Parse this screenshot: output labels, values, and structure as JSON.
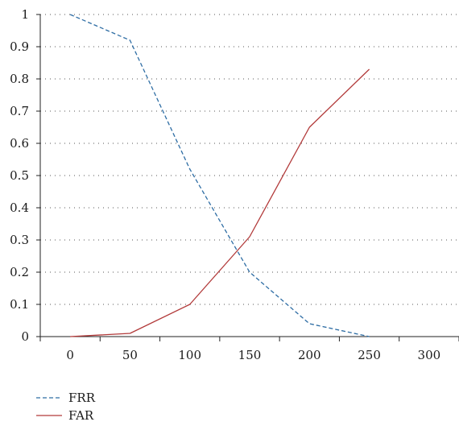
{
  "chart_data": {
    "type": "line",
    "x": [
      0,
      50,
      100,
      150,
      200,
      250
    ],
    "series": [
      {
        "name": "FRR",
        "values": [
          1.0,
          0.92,
          0.52,
          0.2,
          0.04,
          0.0
        ],
        "color": "#2e6da4",
        "dash": "dashed"
      },
      {
        "name": "FAR",
        "values": [
          0.0,
          0.01,
          0.1,
          0.31,
          0.65,
          0.83
        ],
        "color": "#b23a3a",
        "dash": "solid"
      }
    ],
    "xticks": [
      0,
      50,
      100,
      150,
      200,
      250,
      300
    ],
    "yticks": [
      0,
      0.1,
      0.2,
      0.3,
      0.4,
      0.5,
      0.6,
      0.7,
      0.8,
      0.9,
      1
    ],
    "xtick_labels": [
      "0",
      "50",
      "100",
      "150",
      "200",
      "250",
      "300"
    ],
    "ytick_labels": [
      "0",
      "0.1",
      "0.2",
      "0.3",
      "0.4",
      "0.5",
      "0.6",
      "0.7",
      "0.8",
      "0.9",
      "1"
    ],
    "xlim": [
      -25,
      325
    ],
    "ylim": [
      0,
      1
    ],
    "grid": "horizontal-dotted",
    "legend_position": "bottom-left",
    "title": "",
    "xlabel": "",
    "ylabel": ""
  }
}
